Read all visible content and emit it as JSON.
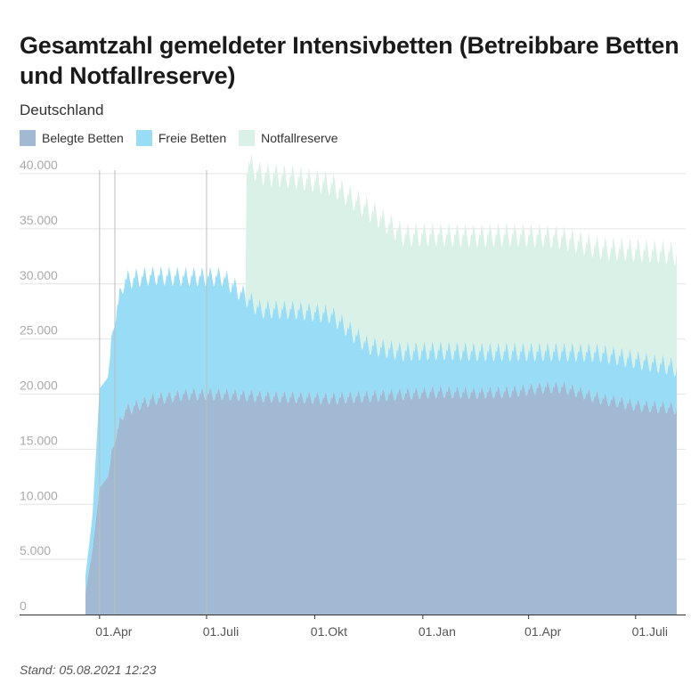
{
  "chart_data": {
    "type": "area",
    "title": "Gesamtzahl gemeldeter Intensivbetten (Betreibbare Betten und Notfallreserve)",
    "subtitle": "Deutschland",
    "footnote": "Stand: 05.08.2021 12:23",
    "x_start": "2020-03-20",
    "x_end": "2021-08-05",
    "ylim": [
      0,
      40000
    ],
    "y_ticks": [
      "0",
      "5.000",
      "10.000",
      "15.000",
      "20.000",
      "25.000",
      "30.000",
      "35.000",
      "40.000"
    ],
    "x_ticks": [
      {
        "date": "2020-04-01",
        "label": "01.Apr"
      },
      {
        "date": "2020-07-01",
        "label": "01.Juli"
      },
      {
        "date": "2020-10-01",
        "label": "01.Okt"
      },
      {
        "date": "2021-01-01",
        "label": "01.Jan"
      },
      {
        "date": "2021-04-01",
        "label": "01.Apr"
      },
      {
        "date": "2021-07-01",
        "label": "01.Juli"
      }
    ],
    "vertical_lines": [
      "2020-04-01",
      "2020-04-14",
      "2020-07-01"
    ],
    "legend_position": "top-left",
    "stacked": true,
    "series": [
      {
        "name": "Belegte Betten",
        "color": "#a2b9d3",
        "points": [
          [
            "2020-03-20",
            2000
          ],
          [
            "2020-03-26",
            6000
          ],
          [
            "2020-04-01",
            11500
          ],
          [
            "2020-04-08",
            12500
          ],
          [
            "2020-04-14",
            16000
          ],
          [
            "2020-04-22",
            18500
          ],
          [
            "2020-05-15",
            19500
          ],
          [
            "2020-06-15",
            20000
          ],
          [
            "2020-07-15",
            20000
          ],
          [
            "2020-08-15",
            19800
          ],
          [
            "2020-09-15",
            19700
          ],
          [
            "2020-10-15",
            19600
          ],
          [
            "2020-11-15",
            19800
          ],
          [
            "2020-12-15",
            20000
          ],
          [
            "2021-01-15",
            20200
          ],
          [
            "2021-02-15",
            20100
          ],
          [
            "2021-03-15",
            20200
          ],
          [
            "2021-04-15",
            20600
          ],
          [
            "2021-05-01",
            20600
          ],
          [
            "2021-06-01",
            19600
          ],
          [
            "2021-07-01",
            19000
          ],
          [
            "2021-08-05",
            18700
          ]
        ]
      },
      {
        "name": "Freie Betten",
        "color": "#99dcf5",
        "points": [
          [
            "2020-03-20",
            1500
          ],
          [
            "2020-03-26",
            3000
          ],
          [
            "2020-04-01",
            9000
          ],
          [
            "2020-04-08",
            9000
          ],
          [
            "2020-04-14",
            11000
          ],
          [
            "2020-04-22",
            11800
          ],
          [
            "2020-05-15",
            11200
          ],
          [
            "2020-06-15",
            10600
          ],
          [
            "2020-07-15",
            10600
          ],
          [
            "2020-08-15",
            7900
          ],
          [
            "2020-09-15",
            7900
          ],
          [
            "2020-10-15",
            7600
          ],
          [
            "2020-11-15",
            4600
          ],
          [
            "2020-12-15",
            3800
          ],
          [
            "2021-01-15",
            3700
          ],
          [
            "2021-02-15",
            3700
          ],
          [
            "2021-03-15",
            3600
          ],
          [
            "2021-04-15",
            3200
          ],
          [
            "2021-05-01",
            3200
          ],
          [
            "2021-06-01",
            4100
          ],
          [
            "2021-07-01",
            4100
          ],
          [
            "2021-08-05",
            3700
          ]
        ]
      },
      {
        "name": "Notfallreserve",
        "color": "#daf1e8",
        "points": [
          [
            "2020-03-20",
            0
          ],
          [
            "2020-03-26",
            0
          ],
          [
            "2020-04-01",
            0
          ],
          [
            "2020-04-08",
            0
          ],
          [
            "2020-04-14",
            0
          ],
          [
            "2020-04-22",
            0
          ],
          [
            "2020-05-15",
            0
          ],
          [
            "2020-06-15",
            0
          ],
          [
            "2020-07-15",
            0
          ],
          [
            "2020-08-03",
            0
          ],
          [
            "2020-08-04",
            12300
          ],
          [
            "2020-08-15",
            12300
          ],
          [
            "2020-09-15",
            12000
          ],
          [
            "2020-10-15",
            11800
          ],
          [
            "2020-11-15",
            12400
          ],
          [
            "2020-12-15",
            10600
          ],
          [
            "2021-01-15",
            10500
          ],
          [
            "2021-02-15",
            10500
          ],
          [
            "2021-03-15",
            10600
          ],
          [
            "2021-04-15",
            10500
          ],
          [
            "2021-05-01",
            10300
          ],
          [
            "2021-06-01",
            9500
          ],
          [
            "2021-07-01",
            9900
          ],
          [
            "2021-08-05",
            10300
          ]
        ]
      }
    ]
  }
}
